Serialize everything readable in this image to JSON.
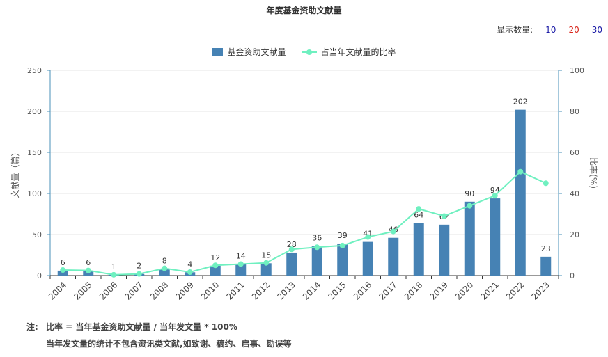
{
  "title": "年度基金资助文献量",
  "controls": {
    "label": "显示数量:",
    "options": [
      {
        "label": "10",
        "color": "#1a1aa6"
      },
      {
        "label": "20",
        "color": "#d9261c"
      },
      {
        "label": "30",
        "color": "#1a1aa6"
      }
    ]
  },
  "legend": {
    "bar_label": "基金资助文献量",
    "line_label": "占当年文献量的比率"
  },
  "colors": {
    "bar": "#4682b4",
    "line": "#6ff0c0",
    "axis": "#4a90b8",
    "grid": "#e6e6e6"
  },
  "chart_data": {
    "type": "bar",
    "categories": [
      "2004",
      "2005",
      "2006",
      "2007",
      "2008",
      "2009",
      "2010",
      "2011",
      "2012",
      "2013",
      "2014",
      "2015",
      "2016",
      "2017",
      "2018",
      "2019",
      "2020",
      "2021",
      "2022",
      "2023"
    ],
    "series": [
      {
        "name": "基金资助文献量",
        "type": "bar",
        "axis": "left",
        "values": [
          6,
          6,
          1,
          2,
          8,
          4,
          12,
          14,
          15,
          28,
          36,
          39,
          41,
          46,
          64,
          62,
          90,
          94,
          202,
          23
        ]
      },
      {
        "name": "占当年文献量的比率",
        "type": "line",
        "axis": "right",
        "values": [
          2.7,
          2.5,
          0.4,
          0.8,
          3.5,
          1.7,
          5,
          5.6,
          6.2,
          12.8,
          13.8,
          14.6,
          18.8,
          21.5,
          32.5,
          29,
          34,
          39,
          50.6,
          45
        ]
      }
    ],
    "ylabel": "文献量（篇）",
    "y2label": "比率(%)",
    "ylim": [
      0,
      250
    ],
    "y2lim": [
      0,
      100
    ],
    "yticks": [
      0,
      50,
      100,
      150,
      200,
      250
    ],
    "y2ticks": [
      0,
      20,
      40,
      60,
      80,
      100
    ],
    "grid": true,
    "legend_position": "top-center"
  },
  "notes": {
    "prefix": "注:",
    "line1": "比率 = 当年基金资助文献量 / 当年发文量 * 100%",
    "line2": "当年发文量的统计不包含资讯类文献,如致谢、稿约、启事、勘误等"
  }
}
